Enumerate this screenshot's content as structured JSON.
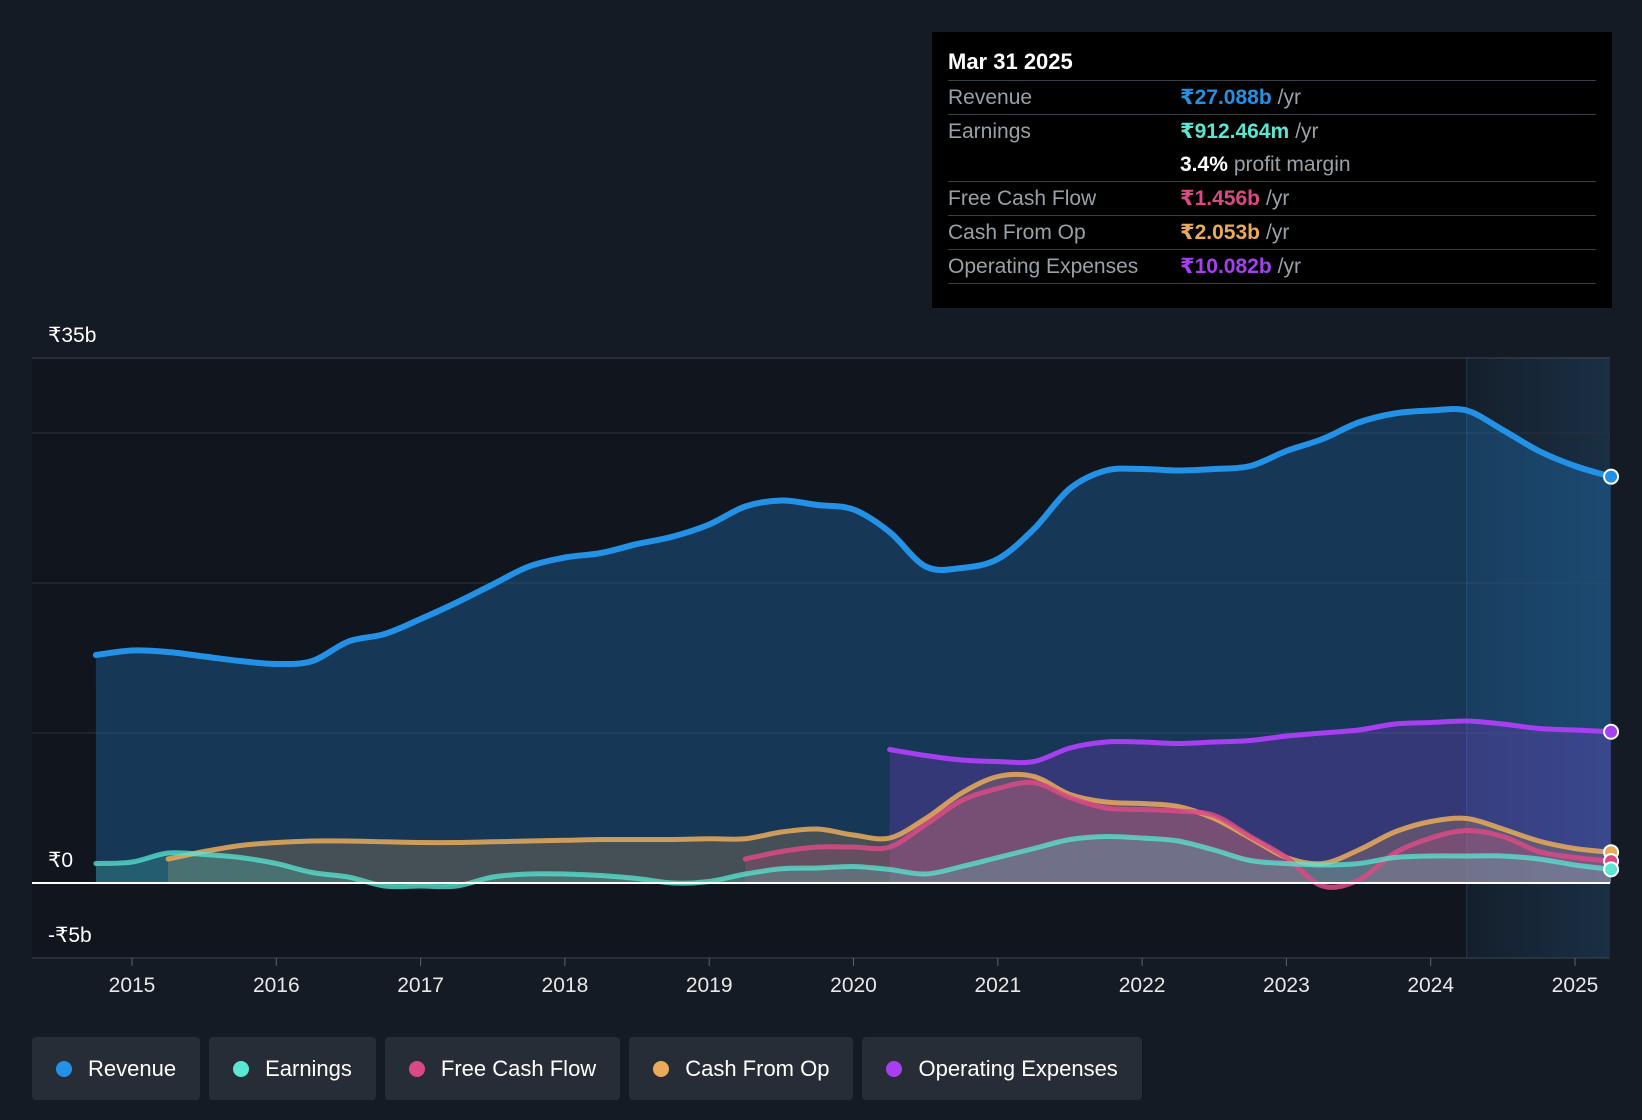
{
  "colors": {
    "revenue": "#2391e6",
    "earnings": "#5ae6d2",
    "fcf": "#d94a85",
    "cfo": "#e9ab5a",
    "opex": "#a63ff0",
    "background": "#151b24"
  },
  "tooltip": {
    "date": "Mar 31 2025",
    "rows": [
      {
        "label": "Revenue",
        "value": "₹27.088b",
        "unit": "/yr",
        "color": "#2391e6"
      },
      {
        "label": "Earnings",
        "value": "₹912.464m",
        "unit": "/yr",
        "color": "#5ae6d2"
      },
      {
        "label": "",
        "value": "3.4%",
        "unit": "profit margin",
        "color": "#ffffff"
      },
      {
        "label": "Free Cash Flow",
        "value": "₹1.456b",
        "unit": "/yr",
        "color": "#d94a85"
      },
      {
        "label": "Cash From Op",
        "value": "₹2.053b",
        "unit": "/yr",
        "color": "#e9ab5a"
      },
      {
        "label": "Operating Expenses",
        "value": "₹10.082b",
        "unit": "/yr",
        "color": "#a63ff0"
      }
    ]
  },
  "legend": [
    {
      "label": "Revenue",
      "color": "#2391e6"
    },
    {
      "label": "Earnings",
      "color": "#5ae6d2"
    },
    {
      "label": "Free Cash Flow",
      "color": "#d94a85"
    },
    {
      "label": "Cash From Op",
      "color": "#e9ab5a"
    },
    {
      "label": "Operating Expenses",
      "color": "#a63ff0"
    }
  ],
  "chart_data": {
    "type": "line",
    "title": "",
    "xlabel": "",
    "ylabel": "",
    "ylim": [
      -5,
      35
    ],
    "xlim": [
      2014.6,
      2025.25
    ],
    "x_ticks": [
      "2015",
      "2016",
      "2017",
      "2018",
      "2019",
      "2020",
      "2021",
      "2022",
      "2023",
      "2024",
      "2025"
    ],
    "y_tick_labels": [
      {
        "value": 35,
        "label": "₹35b"
      },
      {
        "value": 0,
        "label": "₹0"
      },
      {
        "value": -5,
        "label": "-₹5b"
      }
    ],
    "highlight_start": 2024.25,
    "series": [
      {
        "name": "Revenue",
        "key": "revenue",
        "unit": "₹b",
        "x": [
          2014.75,
          2015.0,
          2015.25,
          2015.5,
          2015.75,
          2016.0,
          2016.25,
          2016.5,
          2016.75,
          2017.0,
          2017.25,
          2017.5,
          2017.75,
          2018.0,
          2018.25,
          2018.5,
          2018.75,
          2019.0,
          2019.25,
          2019.5,
          2019.75,
          2020.0,
          2020.25,
          2020.5,
          2020.75,
          2021.0,
          2021.25,
          2021.5,
          2021.75,
          2022.0,
          2022.25,
          2022.5,
          2022.75,
          2023.0,
          2023.25,
          2023.5,
          2023.75,
          2024.0,
          2024.25,
          2024.5,
          2024.75,
          2025.0,
          2025.25
        ],
        "values": [
          15.2,
          15.5,
          15.4,
          15.1,
          14.8,
          14.6,
          14.8,
          16.1,
          16.6,
          17.6,
          18.7,
          19.9,
          21.1,
          21.7,
          22.0,
          22.6,
          23.1,
          23.9,
          25.1,
          25.5,
          25.2,
          24.9,
          23.4,
          21.1,
          21.0,
          21.6,
          23.6,
          26.3,
          27.5,
          27.6,
          27.5,
          27.6,
          27.8,
          28.8,
          29.6,
          30.7,
          31.3,
          31.5,
          31.5,
          30.2,
          28.8,
          27.8,
          27.088
        ]
      },
      {
        "name": "Earnings",
        "key": "earnings",
        "unit": "₹b",
        "x": [
          2014.75,
          2015.0,
          2015.25,
          2015.5,
          2015.75,
          2016.0,
          2016.25,
          2016.5,
          2016.75,
          2017.0,
          2017.25,
          2017.5,
          2017.75,
          2018.0,
          2018.25,
          2018.5,
          2018.75,
          2019.0,
          2019.25,
          2019.5,
          2019.75,
          2020.0,
          2020.25,
          2020.5,
          2020.75,
          2021.0,
          2021.25,
          2021.5,
          2021.75,
          2022.0,
          2022.25,
          2022.5,
          2022.75,
          2023.0,
          2023.25,
          2023.5,
          2023.75,
          2024.0,
          2024.25,
          2024.5,
          2024.75,
          2025.0,
          2025.25
        ],
        "values": [
          1.3,
          1.4,
          2.0,
          1.9,
          1.7,
          1.3,
          0.7,
          0.4,
          -0.2,
          -0.2,
          -0.2,
          0.4,
          0.6,
          0.6,
          0.5,
          0.3,
          0.0,
          0.1,
          0.6,
          0.95,
          1.0,
          1.1,
          0.9,
          0.6,
          1.1,
          1.7,
          2.3,
          2.9,
          3.1,
          3.0,
          2.8,
          2.2,
          1.5,
          1.3,
          1.2,
          1.3,
          1.7,
          1.8,
          1.8,
          1.8,
          1.6,
          1.2,
          0.912
        ]
      },
      {
        "name": "Free Cash Flow",
        "key": "fcf",
        "unit": "₹b",
        "x": [
          2019.25,
          2019.5,
          2019.75,
          2020.0,
          2020.25,
          2020.5,
          2020.75,
          2021.0,
          2021.25,
          2021.5,
          2021.75,
          2022.0,
          2022.25,
          2022.5,
          2022.75,
          2023.0,
          2023.25,
          2023.5,
          2023.75,
          2024.0,
          2024.25,
          2024.5,
          2024.75,
          2025.0,
          2025.25
        ],
        "values": [
          1.6,
          2.1,
          2.4,
          2.4,
          2.4,
          3.9,
          5.5,
          6.3,
          6.7,
          5.7,
          5.0,
          4.9,
          4.8,
          4.5,
          3.1,
          1.7,
          -0.2,
          0.2,
          2.0,
          3.0,
          3.5,
          3.1,
          2.1,
          1.7,
          1.456
        ]
      },
      {
        "name": "Cash From Op",
        "key": "cfo",
        "unit": "₹b",
        "x": [
          2015.25,
          2015.5,
          2015.75,
          2016.0,
          2016.25,
          2016.5,
          2016.75,
          2017.0,
          2017.25,
          2017.5,
          2017.75,
          2018.0,
          2018.25,
          2018.5,
          2018.75,
          2019.0,
          2019.25,
          2019.5,
          2019.75,
          2020.0,
          2020.25,
          2020.5,
          2020.75,
          2021.0,
          2021.25,
          2021.5,
          2021.75,
          2022.0,
          2022.25,
          2022.5,
          2022.75,
          2023.0,
          2023.25,
          2023.5,
          2023.75,
          2024.0,
          2024.25,
          2024.5,
          2024.75,
          2025.0,
          2025.25
        ],
        "values": [
          1.6,
          2.1,
          2.5,
          2.7,
          2.8,
          2.8,
          2.75,
          2.7,
          2.7,
          2.75,
          2.8,
          2.85,
          2.9,
          2.9,
          2.9,
          2.95,
          2.95,
          3.4,
          3.6,
          3.2,
          3.0,
          4.3,
          6.0,
          7.1,
          7.1,
          5.9,
          5.4,
          5.3,
          5.1,
          4.3,
          3.0,
          1.7,
          1.3,
          2.2,
          3.4,
          4.1,
          4.3,
          3.6,
          2.8,
          2.3,
          2.053
        ]
      },
      {
        "name": "Operating Expenses",
        "key": "opex",
        "unit": "₹b",
        "x": [
          2020.25,
          2020.5,
          2020.75,
          2021.0,
          2021.25,
          2021.5,
          2021.75,
          2022.0,
          2022.25,
          2022.5,
          2022.75,
          2023.0,
          2023.25,
          2023.5,
          2023.75,
          2024.0,
          2024.25,
          2024.5,
          2024.75,
          2025.0,
          2025.25
        ],
        "values": [
          8.9,
          8.5,
          8.2,
          8.1,
          8.1,
          9.0,
          9.4,
          9.4,
          9.3,
          9.4,
          9.5,
          9.8,
          10.0,
          10.2,
          10.6,
          10.7,
          10.8,
          10.6,
          10.3,
          10.2,
          10.082
        ]
      }
    ]
  }
}
